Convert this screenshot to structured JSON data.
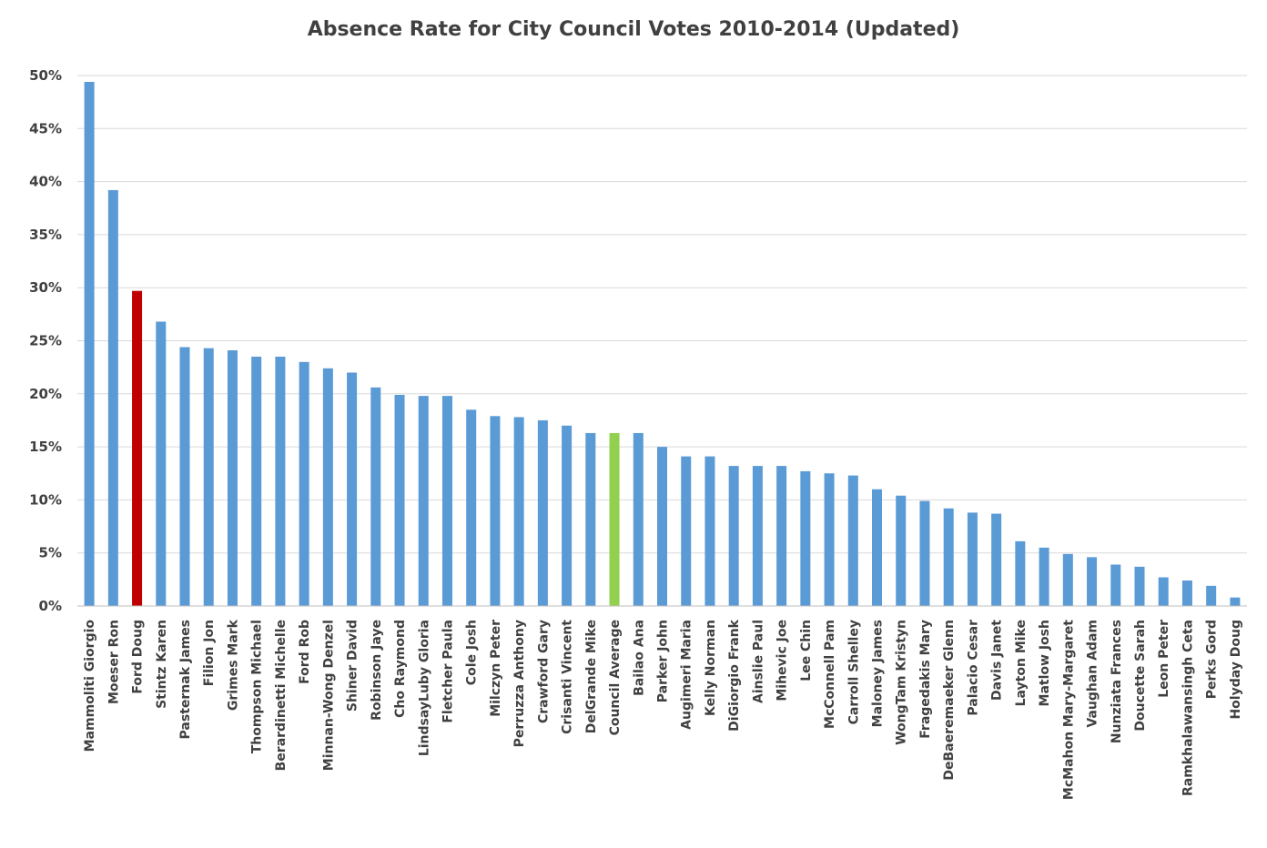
{
  "chart_data": {
    "type": "bar",
    "title": "Absence Rate for City Council Votes 2010-2014 (Updated)",
    "xlabel": "",
    "ylabel": "",
    "ylim": [
      0,
      0.5
    ],
    "yticks": [
      {
        "value": 0.0,
        "label": "0%"
      },
      {
        "value": 0.05,
        "label": "5%"
      },
      {
        "value": 0.1,
        "label": "10%"
      },
      {
        "value": 0.15,
        "label": "15%"
      },
      {
        "value": 0.2,
        "label": "20%"
      },
      {
        "value": 0.25,
        "label": "25%"
      },
      {
        "value": 0.3,
        "label": "30%"
      },
      {
        "value": 0.35,
        "label": "35%"
      },
      {
        "value": 0.4,
        "label": "40%"
      },
      {
        "value": 0.45,
        "label": "45%"
      },
      {
        "value": 0.5,
        "label": "50%"
      }
    ],
    "grid": true,
    "legend": "none",
    "colors": {
      "default": "#5b9bd5",
      "highlight_red": "#c00000",
      "highlight_green": "#92d050",
      "grid": "#d9d9d9",
      "axis": "#bfbfbf"
    },
    "categories": [
      "Mammoliti Giorgio",
      "Moeser Ron",
      "Ford Doug",
      "Stintz Karen",
      "Pasternak James",
      "Filion Jon",
      "Grimes Mark",
      "Thompson Michael",
      "Berardinetti Michelle",
      "Ford Rob",
      "Minnan-Wong Denzel",
      "Shiner David",
      "Robinson Jaye",
      "Cho Raymond",
      "LindsayLuby Gloria",
      "Fletcher Paula",
      "Cole Josh",
      "Milczyn Peter",
      "Perruzza Anthony",
      "Crawford Gary",
      "Crisanti Vincent",
      "DelGrande Mike",
      "Council Average",
      "Bailao Ana",
      "Parker John",
      "Augimeri Maria",
      "Kelly Norman",
      "DiGiorgio Frank",
      "Ainslie Paul",
      "Mihevic Joe",
      "Lee Chin",
      "McConnell Pam",
      "Carroll Shelley",
      "Maloney James",
      "WongTam Kristyn",
      "Fragedakis Mary",
      "DeBaeremaeker Glenn",
      "Palacio Cesar",
      "Davis Janet",
      "Layton Mike",
      "Matlow Josh",
      "McMahon Mary-Margaret",
      "Vaughan Adam",
      "Nunziata Frances",
      "Doucette Sarah",
      "Leon Peter",
      "Ramkhalawansingh Ceta",
      "Perks Gord",
      "Holyday Doug"
    ],
    "values": [
      0.494,
      0.392,
      0.297,
      0.268,
      0.244,
      0.243,
      0.241,
      0.235,
      0.235,
      0.23,
      0.224,
      0.22,
      0.206,
      0.199,
      0.198,
      0.198,
      0.185,
      0.179,
      0.178,
      0.175,
      0.17,
      0.163,
      0.163,
      0.163,
      0.15,
      0.141,
      0.141,
      0.132,
      0.132,
      0.132,
      0.127,
      0.125,
      0.123,
      0.11,
      0.104,
      0.099,
      0.092,
      0.088,
      0.087,
      0.061,
      0.055,
      0.049,
      0.046,
      0.039,
      0.037,
      0.027,
      0.024,
      0.019,
      0.008
    ],
    "highlights": {
      "Ford Doug": "highlight_red",
      "Council Average": "highlight_green"
    }
  }
}
